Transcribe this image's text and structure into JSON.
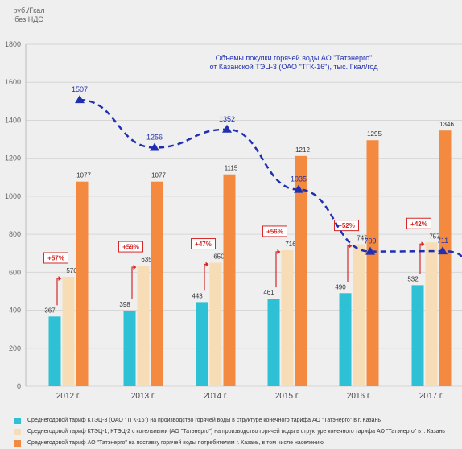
{
  "chart_data": {
    "type": "bar",
    "ylabel_lines": [
      "руб./Гкал",
      "без НДС"
    ],
    "ylim": [
      0,
      1800
    ],
    "yticks": [
      0,
      200,
      400,
      600,
      800,
      1000,
      1200,
      1400,
      1600,
      1800
    ],
    "grid": true,
    "categories": [
      "2012 г.",
      "2013 г.",
      "2014 г.",
      "2015 г.",
      "2016 г.",
      "2017 г."
    ],
    "series": [
      {
        "name": "Среднегодовой тариф КТЭЦ-3 (ОАО \"ТГК-16\") на производство горячей воды в структуре конечного тарифа АО \"Татэнерго\" в г. Казань",
        "values": [
          367,
          398,
          443,
          461,
          490,
          532
        ],
        "color": "#2ec0d4"
      },
      {
        "name": "Среднегодовой тариф КТЭЦ-1, КТЭЦ-2 с котельными (АО \"Татэнерго\") на производство горячей воды в структуре конечного тарифа АО \"Татэнерго\" в г. Казань",
        "values": [
          576,
          635,
          650,
          716,
          747,
          757
        ],
        "color": "#f7ddb5"
      },
      {
        "name": "Среднегодовой тариф АО \"Татэнерго\" на поставку горячей воды потребителям г. Казань, в том числе населению",
        "values": [
          1077,
          1077,
          1115,
          1212,
          1295,
          1346
        ],
        "color": "#f38a3f"
      }
    ],
    "percent_labels": [
      "+57%",
      "+59%",
      "+47%",
      "+56%",
      "+52%",
      "+42%"
    ],
    "line_series": {
      "title_lines": [
        "Объемы покупки горячей воды АО \"Татэнерго\"",
        "от Казанской ТЭЦ-3 (ОАО \"ТГК-16\"), тыс. Гкал/год"
      ],
      "values": [
        1507,
        1256,
        1352,
        1035,
        709,
        711
      ],
      "color": "#1f2fb0"
    },
    "legend_position": "bottom"
  }
}
